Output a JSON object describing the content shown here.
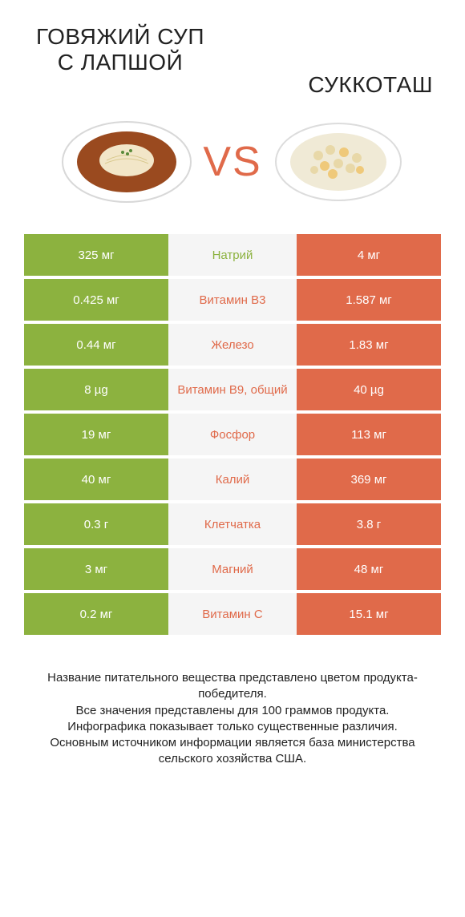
{
  "colors": {
    "left_bar": "#8cb23f",
    "right_bar": "#e06a4a",
    "center_bg": "#f5f5f5",
    "text_white": "#ffffff",
    "vs": "#e06a4a"
  },
  "header": {
    "left_title": "ГОВЯЖИЙ СУП С ЛАПШОЙ",
    "right_title": "СУККОТАШ",
    "vs": "VS"
  },
  "rows": [
    {
      "left": "325 мг",
      "label": "Натрий",
      "right": "4 мг",
      "label_color": "#8cb23f"
    },
    {
      "left": "0.425 мг",
      "label": "Витамин B3",
      "right": "1.587 мг",
      "label_color": "#e06a4a"
    },
    {
      "left": "0.44 мг",
      "label": "Железо",
      "right": "1.83 мг",
      "label_color": "#e06a4a"
    },
    {
      "left": "8 µg",
      "label": "Витамин B9, общий",
      "right": "40 µg",
      "label_color": "#e06a4a"
    },
    {
      "left": "19 мг",
      "label": "Фосфор",
      "right": "113 мг",
      "label_color": "#e06a4a"
    },
    {
      "left": "40 мг",
      "label": "Калий",
      "right": "369 мг",
      "label_color": "#e06a4a"
    },
    {
      "left": "0.3 г",
      "label": "Клетчатка",
      "right": "3.8 г",
      "label_color": "#e06a4a"
    },
    {
      "left": "3 мг",
      "label": "Магний",
      "right": "48 мг",
      "label_color": "#e06a4a"
    },
    {
      "left": "0.2 мг",
      "label": "Витамин C",
      "right": "15.1 мг",
      "label_color": "#e06a4a"
    }
  ],
  "footer": {
    "line1": "Название питательного вещества представлено цветом продукта-победителя.",
    "line2": "Все значения представлены для 100 граммов продукта.",
    "line3": "Инфографика показывает только существенные различия.",
    "line4": "Основным источником информации является база министерства сельского хозяйства США."
  }
}
